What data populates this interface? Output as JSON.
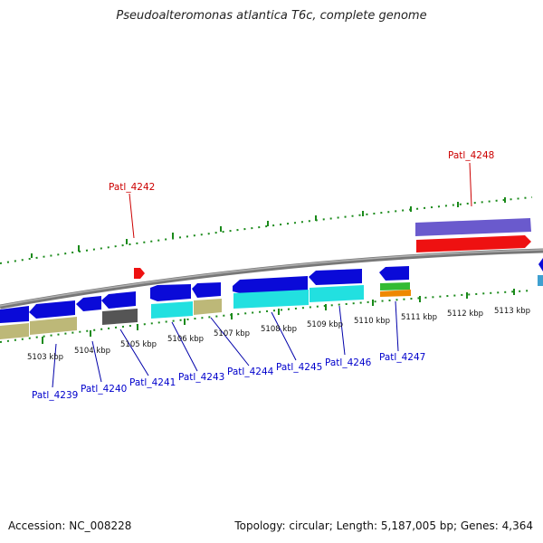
{
  "title": "Pseudoalteromonas atlantica T6c, complete genome",
  "footer": {
    "accession": "Accession: NC_008228",
    "topology": "Topology: circular; Length: 5,187,005 bp; Genes: 4,364"
  },
  "scale_labels": [
    "5103 kbp",
    "5104 kbp",
    "5105 kbp",
    "5106 kbp",
    "5107 kbp",
    "5108 kbp",
    "5109 kbp",
    "5110 kbp",
    "5111 kbp",
    "5112 kbp",
    "5113 kbp"
  ],
  "gene_labels": [
    "Patl_4239",
    "Patl_4240",
    "Patl_4241",
    "Patl_4242",
    "Patl_4243",
    "Patl_4244",
    "Patl_4245",
    "Patl_4246",
    "Patl_4247",
    "Patl_4248"
  ],
  "colors": {
    "backbone": "#8a8a8a",
    "tick": "#1a8a1a",
    "cds_blue": "#0a0ad8",
    "cyan": "#22e0e0",
    "khaki": "#bdb878",
    "dark_gray": "#555555",
    "green": "#33bb33",
    "orange": "#ee8800",
    "purple": "#6a5acd",
    "red": "#ee1111"
  }
}
